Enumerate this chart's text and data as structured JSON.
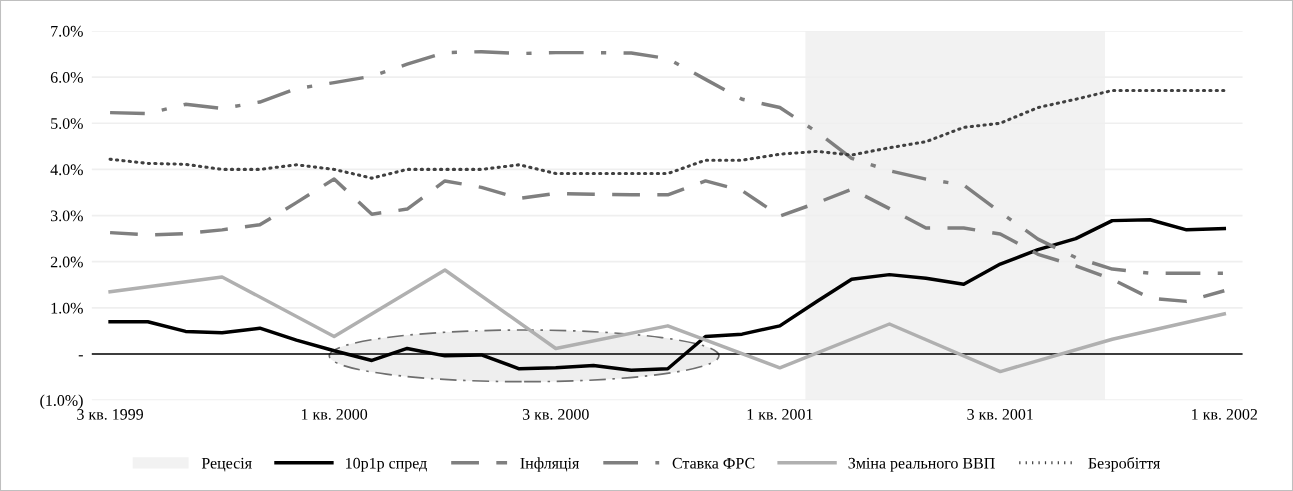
{
  "chart_data": {
    "type": "line",
    "x": [
      "1999-07",
      "1999-08",
      "1999-09",
      "1999-10",
      "1999-11",
      "1999-12",
      "2000-01",
      "2000-02",
      "2000-03",
      "2000-04",
      "2000-05",
      "2000-06",
      "2000-07",
      "2000-08",
      "2000-09",
      "2000-10",
      "2000-11",
      "2000-12",
      "2001-01",
      "2001-02",
      "2001-03",
      "2001-04",
      "2001-05",
      "2001-06",
      "2001-07",
      "2001-08",
      "2001-09",
      "2001-10",
      "2001-11",
      "2001-12",
      "2002-01"
    ],
    "xlim": [
      "1999-06-16",
      "2002-01-16"
    ],
    "xticks": [
      {
        "value": "1999-07",
        "label": "3 кв. 1999"
      },
      {
        "value": "2000-01",
        "label": "1 кв. 2000"
      },
      {
        "value": "2000-07",
        "label": "3 кв. 2000"
      },
      {
        "value": "2001-01",
        "label": "1 кв. 2001"
      },
      {
        "value": "2001-07",
        "label": "3 кв. 2001"
      },
      {
        "value": "2002-01",
        "label": "1 кв. 2002"
      }
    ],
    "series": [
      {
        "name": "10p1p спред",
        "color": "#000000",
        "line_style": "solid",
        "values": [
          0.7,
          0.7,
          0.49,
          0.46,
          0.56,
          0.3,
          0.07,
          -0.14,
          0.12,
          -0.04,
          -0.02,
          -0.32,
          -0.3,
          -0.25,
          -0.35,
          -0.32,
          0.38,
          0.43,
          0.61,
          1.15,
          1.62,
          1.72,
          1.64,
          1.51,
          1.95,
          2.26,
          2.5,
          2.89,
          2.91,
          2.69,
          2.72
        ]
      },
      {
        "name": "Інфляція",
        "color": "#7f7f7f",
        "line_style": "dashed",
        "values": [
          2.63,
          2.58,
          2.61,
          2.69,
          2.8,
          3.28,
          3.79,
          3.03,
          3.14,
          3.75,
          3.61,
          3.37,
          3.48,
          3.46,
          3.45,
          3.45,
          3.75,
          3.54,
          2.99,
          3.28,
          3.57,
          3.15,
          2.73,
          2.73,
          2.6,
          2.16,
          1.91,
          1.62,
          1.21,
          1.14,
          1.37
        ]
      },
      {
        "name": "Ставка ФРС",
        "color": "#7f7f7f",
        "line_style": "dashdot",
        "values": [
          5.23,
          5.21,
          5.41,
          5.32,
          5.46,
          5.75,
          5.88,
          6.02,
          6.28,
          6.53,
          6.55,
          6.51,
          6.53,
          6.53,
          6.52,
          6.4,
          5.95,
          5.52,
          5.34,
          4.8,
          4.24,
          3.97,
          3.79,
          3.66,
          3.07,
          2.49,
          2.09,
          1.84,
          1.75,
          1.75,
          1.75
        ]
      },
      {
        "name": "Зміна реального ВВП",
        "color": "#b0b0b0",
        "line_style": "solid",
        "values": [
          1.35,
          null,
          null,
          1.67,
          null,
          null,
          0.38,
          null,
          null,
          1.82,
          null,
          null,
          0.12,
          null,
          null,
          0.61,
          null,
          null,
          -0.3,
          null,
          null,
          0.65,
          null,
          null,
          -0.38,
          null,
          null,
          0.32,
          null,
          null,
          0.87
        ]
      },
      {
        "name": "Безробіття",
        "color": "#404040",
        "line_style": "dotted",
        "values": [
          4.22,
          4.13,
          4.11,
          4.0,
          4.0,
          4.1,
          4.0,
          3.81,
          4.0,
          4.0,
          4.0,
          4.1,
          3.91,
          3.91,
          3.91,
          3.91,
          4.2,
          4.2,
          4.33,
          4.39,
          4.31,
          4.47,
          4.6,
          4.91,
          5.0,
          5.34,
          5.52,
          5.71,
          5.71,
          5.71,
          5.71
        ]
      }
    ],
    "bands": [
      {
        "axis": "x",
        "from": "2001-01-22",
        "to": "2001-09-25",
        "label": "Рецесія",
        "color": "#f2f2f2"
      }
    ],
    "ylim": [
      -1.0,
      7.0
    ],
    "yticks": [
      {
        "value": -1.0,
        "label": "(1.0%)"
      },
      {
        "value": 0,
        "label": "-"
      },
      {
        "value": 1.0,
        "label": "1.0%"
      },
      {
        "value": 2.0,
        "label": "2.0%"
      },
      {
        "value": 3.0,
        "label": "3.0%"
      },
      {
        "value": 4.0,
        "label": "4.0%"
      },
      {
        "value": 5.0,
        "label": "5.0%"
      },
      {
        "value": 6.0,
        "label": "6.0%"
      },
      {
        "value": 7.0,
        "label": "7.0%"
      }
    ],
    "grid": "y",
    "legend": "bottom"
  }
}
